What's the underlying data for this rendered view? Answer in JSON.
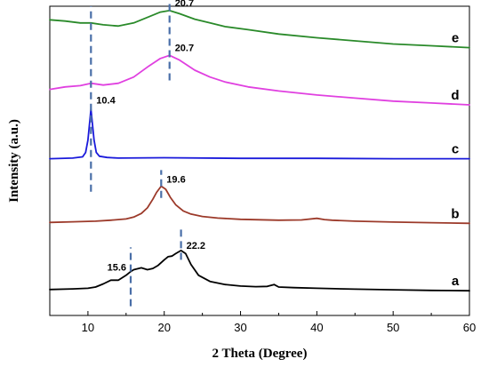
{
  "chart_data": {
    "type": "line",
    "xlabel": "2 Theta (Degree)",
    "ylabel": "Intensity (a.u.)",
    "xlim": [
      5,
      60
    ],
    "xticks": [
      "10",
      "20",
      "30",
      "40",
      "50",
      "60"
    ],
    "grid": false,
    "series": [
      {
        "name": "a",
        "color": "#000000",
        "offset": 0.08,
        "x": [
          5,
          8,
          10,
          11,
          12,
          13,
          14,
          15,
          15.6,
          16,
          17,
          17.8,
          18.5,
          19.2,
          20,
          20.5,
          21,
          21.5,
          22.2,
          22.8,
          23.5,
          24.5,
          26,
          28,
          30,
          32,
          33.5,
          34.4,
          35,
          37,
          40,
          45,
          50,
          55,
          60
        ],
        "y": [
          0.004,
          0.006,
          0.008,
          0.012,
          0.022,
          0.034,
          0.034,
          0.05,
          0.062,
          0.068,
          0.074,
          0.068,
          0.072,
          0.082,
          0.1,
          0.11,
          0.112,
          0.12,
          0.13,
          0.12,
          0.085,
          0.05,
          0.03,
          0.02,
          0.015,
          0.013,
          0.014,
          0.02,
          0.012,
          0.01,
          0.008,
          0.005,
          0.003,
          0.001,
          0.0
        ]
      },
      {
        "name": "b",
        "color": "#9c3a2a",
        "offset": 0.298,
        "x": [
          5,
          8,
          11,
          13,
          15,
          16,
          17,
          17.8,
          18.5,
          19,
          19.6,
          20.2,
          20.8,
          21.5,
          22.5,
          23.5,
          25,
          27,
          30,
          35,
          38,
          40,
          41,
          42,
          45,
          50,
          55,
          60
        ],
        "y": [
          0.003,
          0.005,
          0.007,
          0.01,
          0.014,
          0.02,
          0.032,
          0.05,
          0.078,
          0.1,
          0.12,
          0.11,
          0.084,
          0.06,
          0.04,
          0.03,
          0.022,
          0.017,
          0.013,
          0.01,
          0.011,
          0.016,
          0.012,
          0.01,
          0.007,
          0.004,
          0.002,
          0.0
        ]
      },
      {
        "name": "c",
        "color": "#1a1adb",
        "offset": 0.507,
        "x": [
          5,
          8,
          9.3,
          9.7,
          10.0,
          10.4,
          10.8,
          11.1,
          11.5,
          12.5,
          14,
          20,
          30,
          40,
          50,
          60
        ],
        "y": [
          0.0,
          0.002,
          0.006,
          0.02,
          0.06,
          0.16,
          0.06,
          0.02,
          0.008,
          0.004,
          0.002,
          0.003,
          0.001,
          0.001,
          0.0,
          0.0
        ]
      },
      {
        "name": "d",
        "color": "#e040e0",
        "offset": 0.681,
        "x": [
          5,
          7,
          9,
          10.4,
          12,
          14,
          16,
          18,
          19.5,
          20.7,
          22,
          24,
          26,
          28,
          31,
          35,
          40,
          45,
          50,
          55,
          60
        ],
        "y": [
          0.05,
          0.058,
          0.062,
          0.07,
          0.064,
          0.07,
          0.09,
          0.126,
          0.15,
          0.16,
          0.145,
          0.112,
          0.09,
          0.074,
          0.058,
          0.045,
          0.032,
          0.022,
          0.012,
          0.006,
          0.0
        ]
      },
      {
        "name": "e",
        "color": "#2a8a2a",
        "offset": 0.866,
        "x": [
          5,
          7,
          9,
          10.4,
          12,
          14,
          16,
          18,
          19.5,
          20.7,
          22,
          24,
          26,
          28,
          31,
          35,
          40,
          45,
          50,
          55,
          60
        ],
        "y": [
          0.09,
          0.086,
          0.08,
          0.08,
          0.074,
          0.07,
          0.08,
          0.1,
          0.115,
          0.12,
          0.11,
          0.092,
          0.08,
          0.068,
          0.058,
          0.044,
          0.032,
          0.022,
          0.012,
          0.006,
          0.0
        ]
      }
    ],
    "peak_markers": [
      {
        "x": 15.6,
        "y_from": 0.03,
        "y_to": 0.22,
        "label": "15.6",
        "label_side": "left"
      },
      {
        "x": 22.2,
        "y_from": 0.18,
        "y_to": 0.28,
        "label": "22.2",
        "label_side": "right"
      },
      {
        "x": 19.6,
        "y_from": 0.38,
        "y_to": 0.47,
        "label": "19.6",
        "label_side": "right"
      },
      {
        "x": 10.4,
        "y_from": 0.4,
        "y_to": 1.0,
        "label": "10.4",
        "label_side": "right"
      },
      {
        "x": 20.7,
        "y_from": 0.76,
        "y_to": 1.03,
        "label": "20.7",
        "label_side": "right"
      }
    ],
    "peak_labels": [
      {
        "x": 15.6,
        "y": 0.145,
        "text": "15.6",
        "side": "left"
      },
      {
        "x": 22.2,
        "y": 0.215,
        "text": "22.2",
        "side": "right"
      },
      {
        "x": 19.6,
        "y": 0.43,
        "text": "19.6",
        "side": "right"
      },
      {
        "x": 10.4,
        "y": 0.685,
        "text": "10.4",
        "side": "right"
      },
      {
        "x": 20.7,
        "y": 0.855,
        "text": "20.7",
        "side": "right"
      },
      {
        "x": 20.7,
        "y": 1.0,
        "text": "20.7",
        "side": "right"
      }
    ]
  }
}
